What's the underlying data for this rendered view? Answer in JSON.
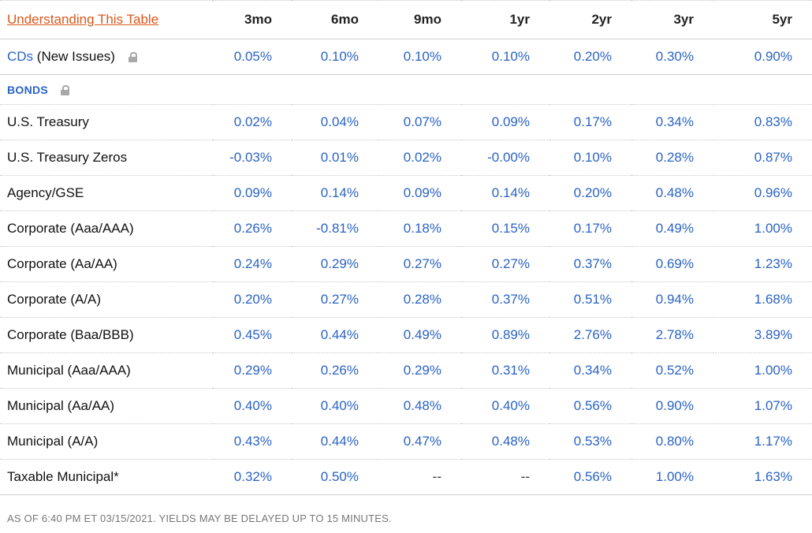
{
  "header": {
    "link_label": "Understanding This Table",
    "columns": [
      "3mo",
      "6mo",
      "9mo",
      "1yr",
      "2yr",
      "3yr",
      "5yr"
    ]
  },
  "cds": {
    "link": "CDs",
    "rest": " (New Issues)",
    "values": [
      "0.05%",
      "0.10%",
      "0.10%",
      "0.10%",
      "0.20%",
      "0.30%",
      "0.90%"
    ]
  },
  "bonds_section": {
    "label": "BONDS"
  },
  "rows": [
    {
      "label": "U.S. Treasury",
      "values": [
        "0.02%",
        "0.04%",
        "0.07%",
        "0.09%",
        "0.17%",
        "0.34%",
        "0.83%"
      ]
    },
    {
      "label": "U.S. Treasury Zeros",
      "values": [
        "-0.03%",
        "0.01%",
        "0.02%",
        "-0.00%",
        "0.10%",
        "0.28%",
        "0.87%"
      ]
    },
    {
      "label": "Agency/GSE",
      "values": [
        "0.09%",
        "0.14%",
        "0.09%",
        "0.14%",
        "0.20%",
        "0.48%",
        "0.96%"
      ]
    },
    {
      "label": "Corporate (Aaa/AAA)",
      "values": [
        "0.26%",
        "-0.81%",
        "0.18%",
        "0.15%",
        "0.17%",
        "0.49%",
        "1.00%"
      ]
    },
    {
      "label": "Corporate (Aa/AA)",
      "values": [
        "0.24%",
        "0.29%",
        "0.27%",
        "0.27%",
        "0.37%",
        "0.69%",
        "1.23%"
      ]
    },
    {
      "label": "Corporate (A/A)",
      "values": [
        "0.20%",
        "0.27%",
        "0.28%",
        "0.37%",
        "0.51%",
        "0.94%",
        "1.68%"
      ]
    },
    {
      "label": "Corporate (Baa/BBB)",
      "values": [
        "0.45%",
        "0.44%",
        "0.49%",
        "0.89%",
        "2.76%",
        "2.78%",
        "3.89%"
      ]
    },
    {
      "label": "Municipal (Aaa/AAA)",
      "values": [
        "0.29%",
        "0.26%",
        "0.29%",
        "0.31%",
        "0.34%",
        "0.52%",
        "1.00%"
      ]
    },
    {
      "label": "Municipal (Aa/AA)",
      "values": [
        "0.40%",
        "0.40%",
        "0.48%",
        "0.40%",
        "0.56%",
        "0.90%",
        "1.07%"
      ]
    },
    {
      "label": "Municipal (A/A)",
      "values": [
        "0.43%",
        "0.44%",
        "0.47%",
        "0.48%",
        "0.53%",
        "0.80%",
        "1.17%"
      ]
    },
    {
      "label": "Taxable Municipal*",
      "values": [
        "0.32%",
        "0.50%",
        "--",
        "--",
        "0.56%",
        "1.00%",
        "1.63%"
      ]
    }
  ],
  "footnote": "AS OF 6:40 PM ET 03/15/2021. YIELDS MAY BE DELAYED UP TO 15 MINUTES.",
  "colors": {
    "link_orange": "#d9581b",
    "value_blue": "#2a63c4",
    "lock_gray": "#a8a8a8"
  },
  "icons": {
    "cds_lock": "lock-icon",
    "bonds_lock": "lock-icon"
  }
}
